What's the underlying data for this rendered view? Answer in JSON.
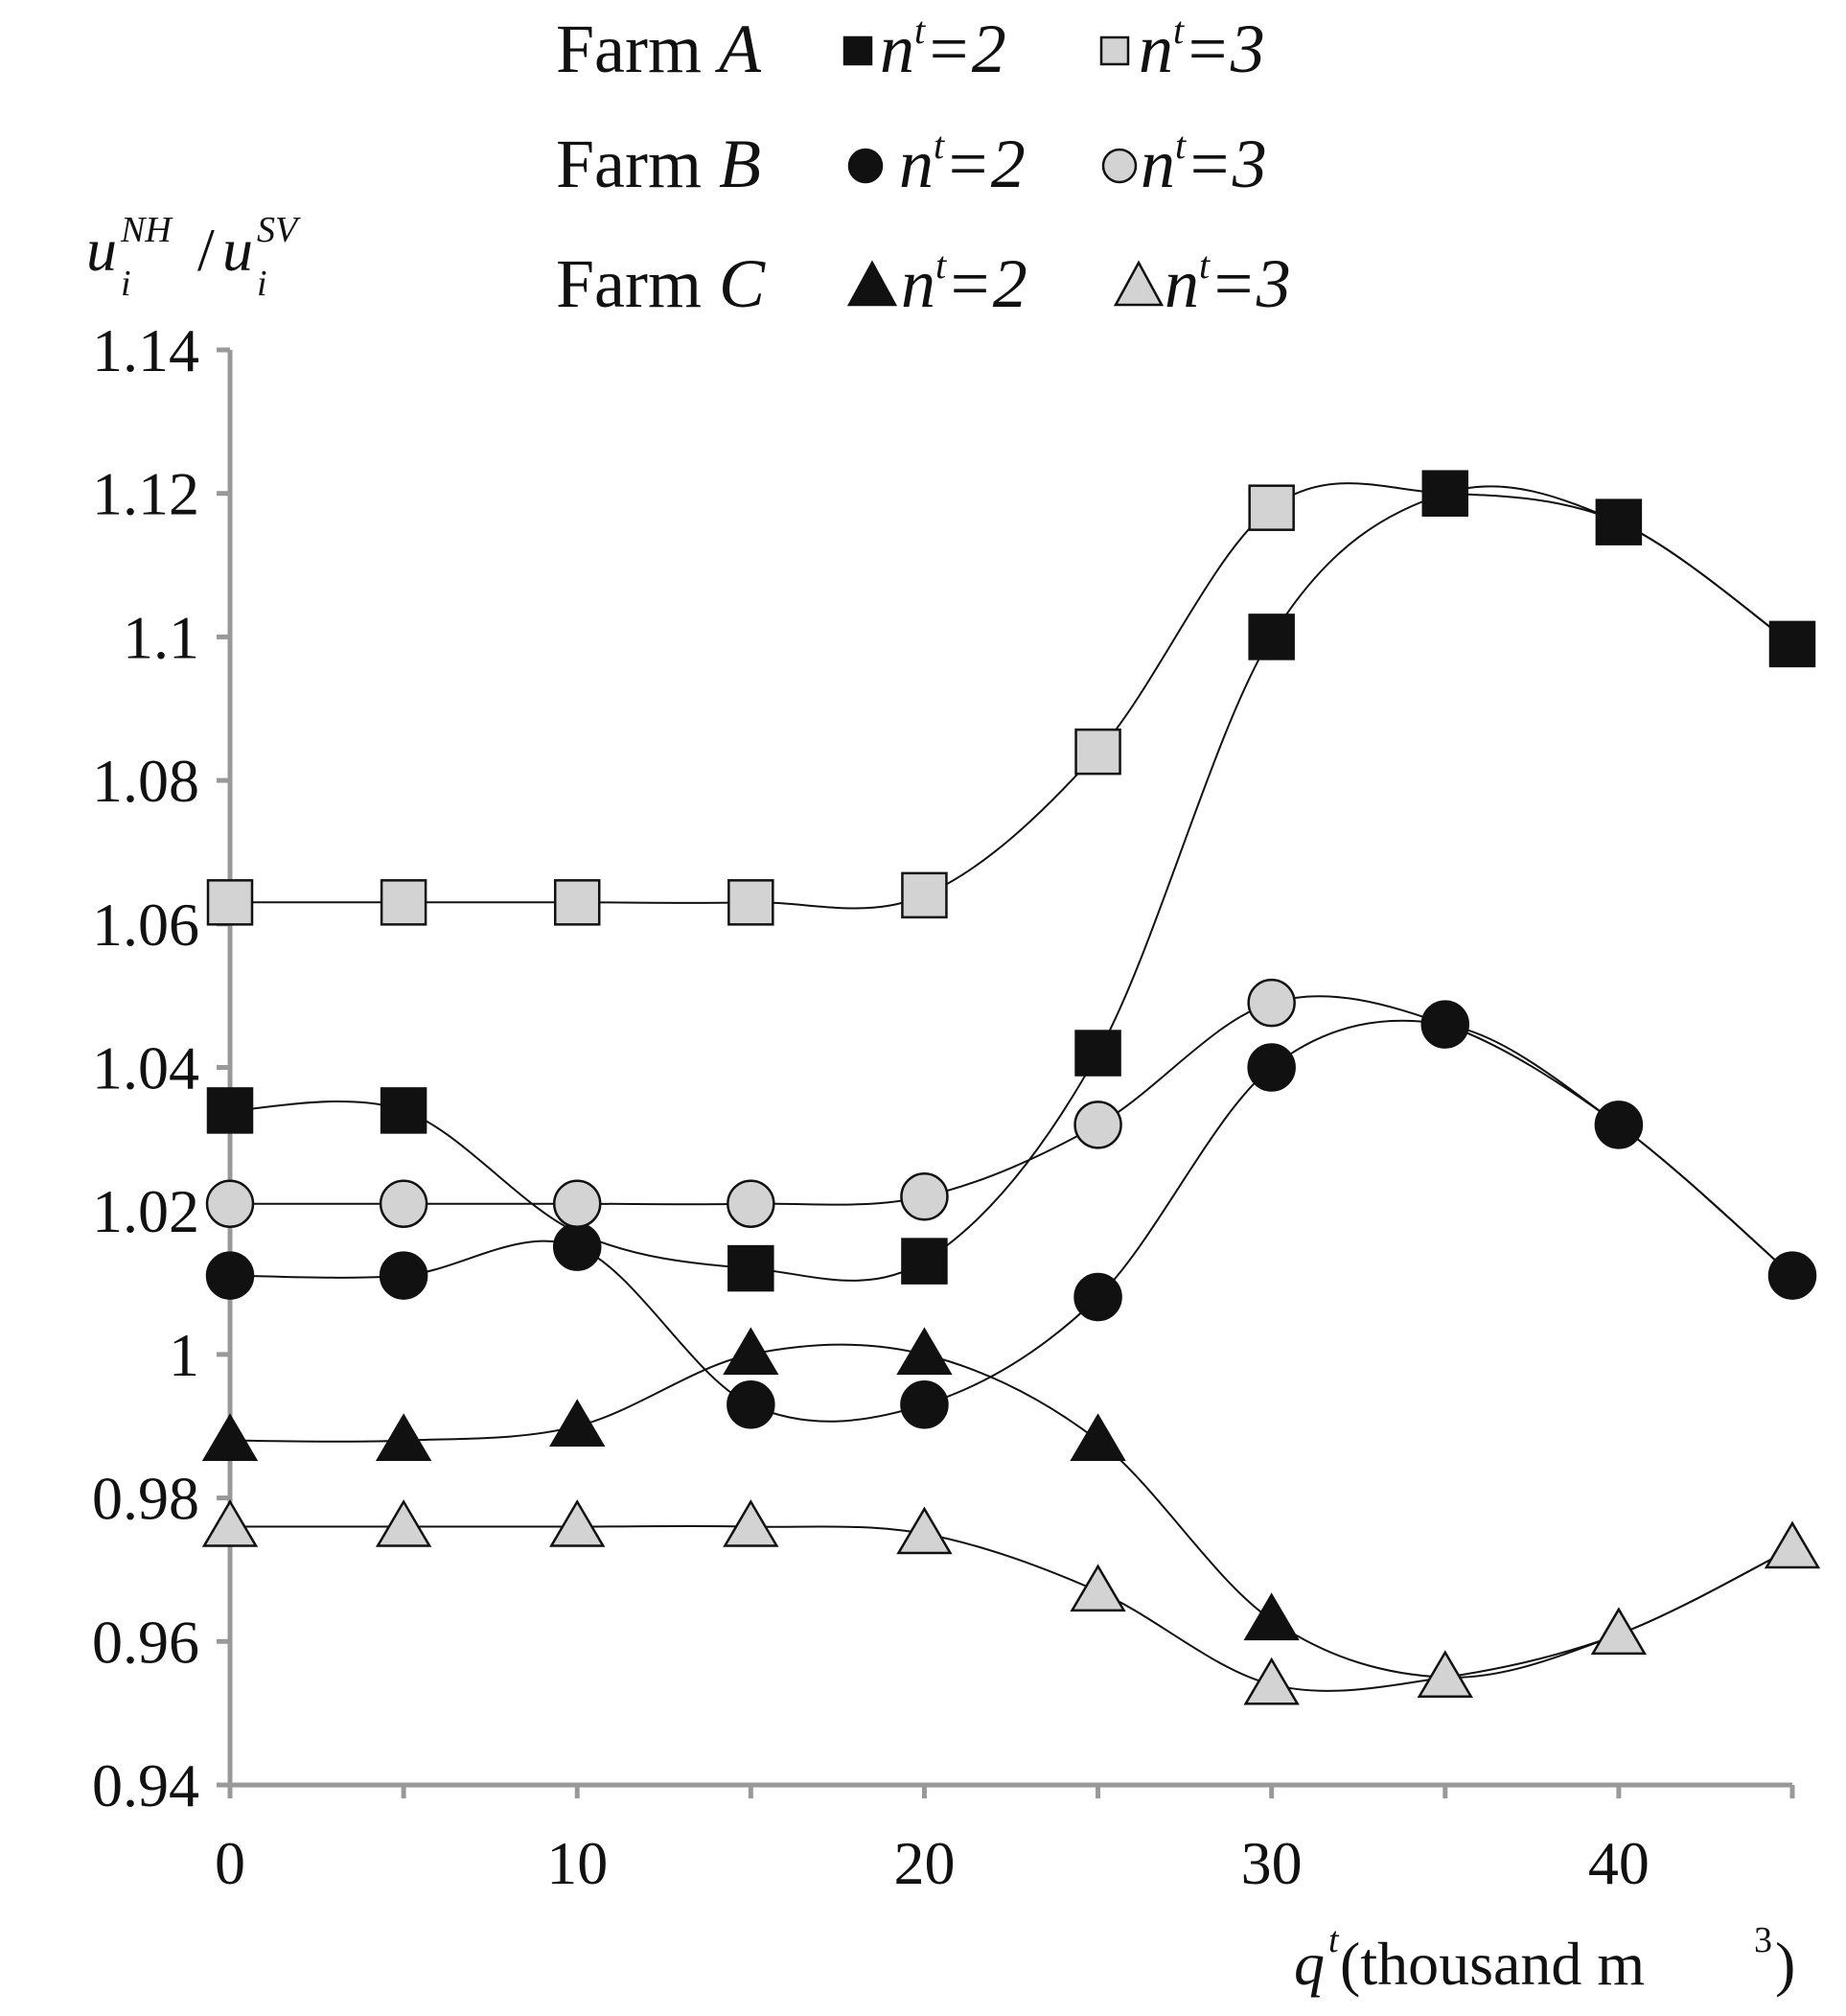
{
  "chart_data": {
    "type": "line",
    "title": "",
    "xlabel_var": "q",
    "xlabel_sup": "t",
    "xlabel_text": " (thousand m",
    "xlabel_unit_sup": "3",
    "xlabel_close": ")",
    "ylabel": {
      "u": "u",
      "sub": "i",
      "sup_num": "NH",
      "slash": "/",
      "sup_den": "SV"
    },
    "xlim": [
      0,
      45
    ],
    "ylim": [
      0.94,
      1.14
    ],
    "x_ticks": [
      0,
      10,
      20,
      30,
      40
    ],
    "x_tick_labels": [
      "0",
      "10",
      "20",
      "30",
      "40"
    ],
    "y_ticks": [
      0.94,
      0.96,
      0.98,
      1.0,
      1.02,
      1.04,
      1.06,
      1.08,
      1.1,
      1.12,
      1.14
    ],
    "y_tick_labels": [
      "0.94",
      "0.96",
      "0.98",
      "1",
      "1.02",
      "1.04",
      "1.06",
      "1.08",
      "1.1",
      "1.12",
      "1.14"
    ],
    "x": [
      0,
      5,
      10,
      15,
      20,
      25,
      30,
      35,
      40,
      45
    ],
    "legend_position": "top",
    "legend": [
      {
        "farm_label": "Farm ",
        "farm_letter": "A",
        "entries": [
          "n|t|=2",
          "n|t|=3"
        ]
      },
      {
        "farm_label": "Farm ",
        "farm_letter": "B",
        "entries": [
          "n|t|=2",
          "n|t|=3"
        ]
      },
      {
        "farm_label": "Farm ",
        "farm_letter": "C",
        "entries": [
          "n|t|=2",
          "n|t|=3"
        ]
      }
    ],
    "series": [
      {
        "name": "Farm A n^t=2",
        "farm": "A",
        "marker": "square",
        "fill": "#111111",
        "values": [
          1.034,
          1.034,
          null,
          1.012,
          1.013,
          1.042,
          1.1,
          1.12,
          1.116,
          1.099
        ]
      },
      {
        "name": "Farm A n^t=3",
        "farm": "A",
        "marker": "square",
        "fill": "#d3d3d3",
        "values": [
          1.063,
          1.063,
          1.063,
          1.063,
          1.064,
          1.084,
          1.118,
          null,
          null,
          null
        ]
      },
      {
        "name": "Farm B n^t=2",
        "farm": "B",
        "marker": "circle",
        "fill": "#111111",
        "values": [
          1.011,
          1.011,
          1.015,
          0.993,
          0.993,
          1.008,
          1.04,
          1.046,
          1.032,
          1.011
        ]
      },
      {
        "name": "Farm B n^t=3",
        "farm": "B",
        "marker": "circle",
        "fill": "#d3d3d3",
        "values": [
          1.021,
          1.021,
          1.021,
          1.021,
          1.022,
          1.032,
          1.049,
          null,
          null,
          null
        ]
      },
      {
        "name": "Farm C n^t=2",
        "farm": "C",
        "marker": "triangle",
        "fill": "#111111",
        "values": [
          0.988,
          0.988,
          0.99,
          1.0,
          1.0,
          0.988,
          0.963,
          null,
          null,
          null
        ]
      },
      {
        "name": "Farm C n^t=3",
        "farm": "C",
        "marker": "triangle",
        "fill": "#d3d3d3",
        "values": [
          0.976,
          0.976,
          0.976,
          0.976,
          0.975,
          0.967,
          0.954,
          0.955,
          0.961,
          0.973
        ]
      }
    ],
    "curves": [
      {
        "name": "curve-farm-a-nt3",
        "x": [
          0,
          5,
          10,
          15,
          20,
          25,
          30,
          35,
          40,
          45
        ],
        "y": [
          1.063,
          1.063,
          1.063,
          1.063,
          1.064,
          1.084,
          1.118,
          1.12,
          1.116,
          1.099
        ]
      },
      {
        "name": "curve-farm-a-nt2",
        "x": [
          0,
          5,
          10,
          15,
          20,
          25,
          30,
          35,
          40,
          45
        ],
        "y": [
          1.034,
          1.034,
          1.017,
          1.012,
          1.013,
          1.042,
          1.1,
          1.12,
          1.116,
          1.099
        ]
      },
      {
        "name": "curve-farm-b-nt3",
        "x": [
          0,
          5,
          10,
          15,
          20,
          25,
          30,
          35,
          40,
          45
        ],
        "y": [
          1.021,
          1.021,
          1.021,
          1.021,
          1.022,
          1.032,
          1.049,
          1.046,
          1.032,
          1.011
        ]
      },
      {
        "name": "curve-farm-b-nt2",
        "x": [
          0,
          5,
          10,
          15,
          20,
          25,
          30,
          35,
          40,
          45
        ],
        "y": [
          1.011,
          1.011,
          1.015,
          0.993,
          0.993,
          1.008,
          1.04,
          1.046,
          1.032,
          1.011
        ]
      },
      {
        "name": "curve-farm-c-nt2",
        "x": [
          0,
          5,
          10,
          15,
          20,
          25,
          30,
          35,
          40,
          45
        ],
        "y": [
          0.988,
          0.988,
          0.99,
          1.0,
          1.0,
          0.988,
          0.963,
          0.955,
          0.961,
          0.973
        ]
      },
      {
        "name": "curve-farm-c-nt3",
        "x": [
          0,
          5,
          10,
          15,
          20,
          25,
          30,
          35,
          40,
          45
        ],
        "y": [
          0.976,
          0.976,
          0.976,
          0.976,
          0.975,
          0.967,
          0.954,
          0.955,
          0.961,
          0.973
        ]
      }
    ]
  }
}
